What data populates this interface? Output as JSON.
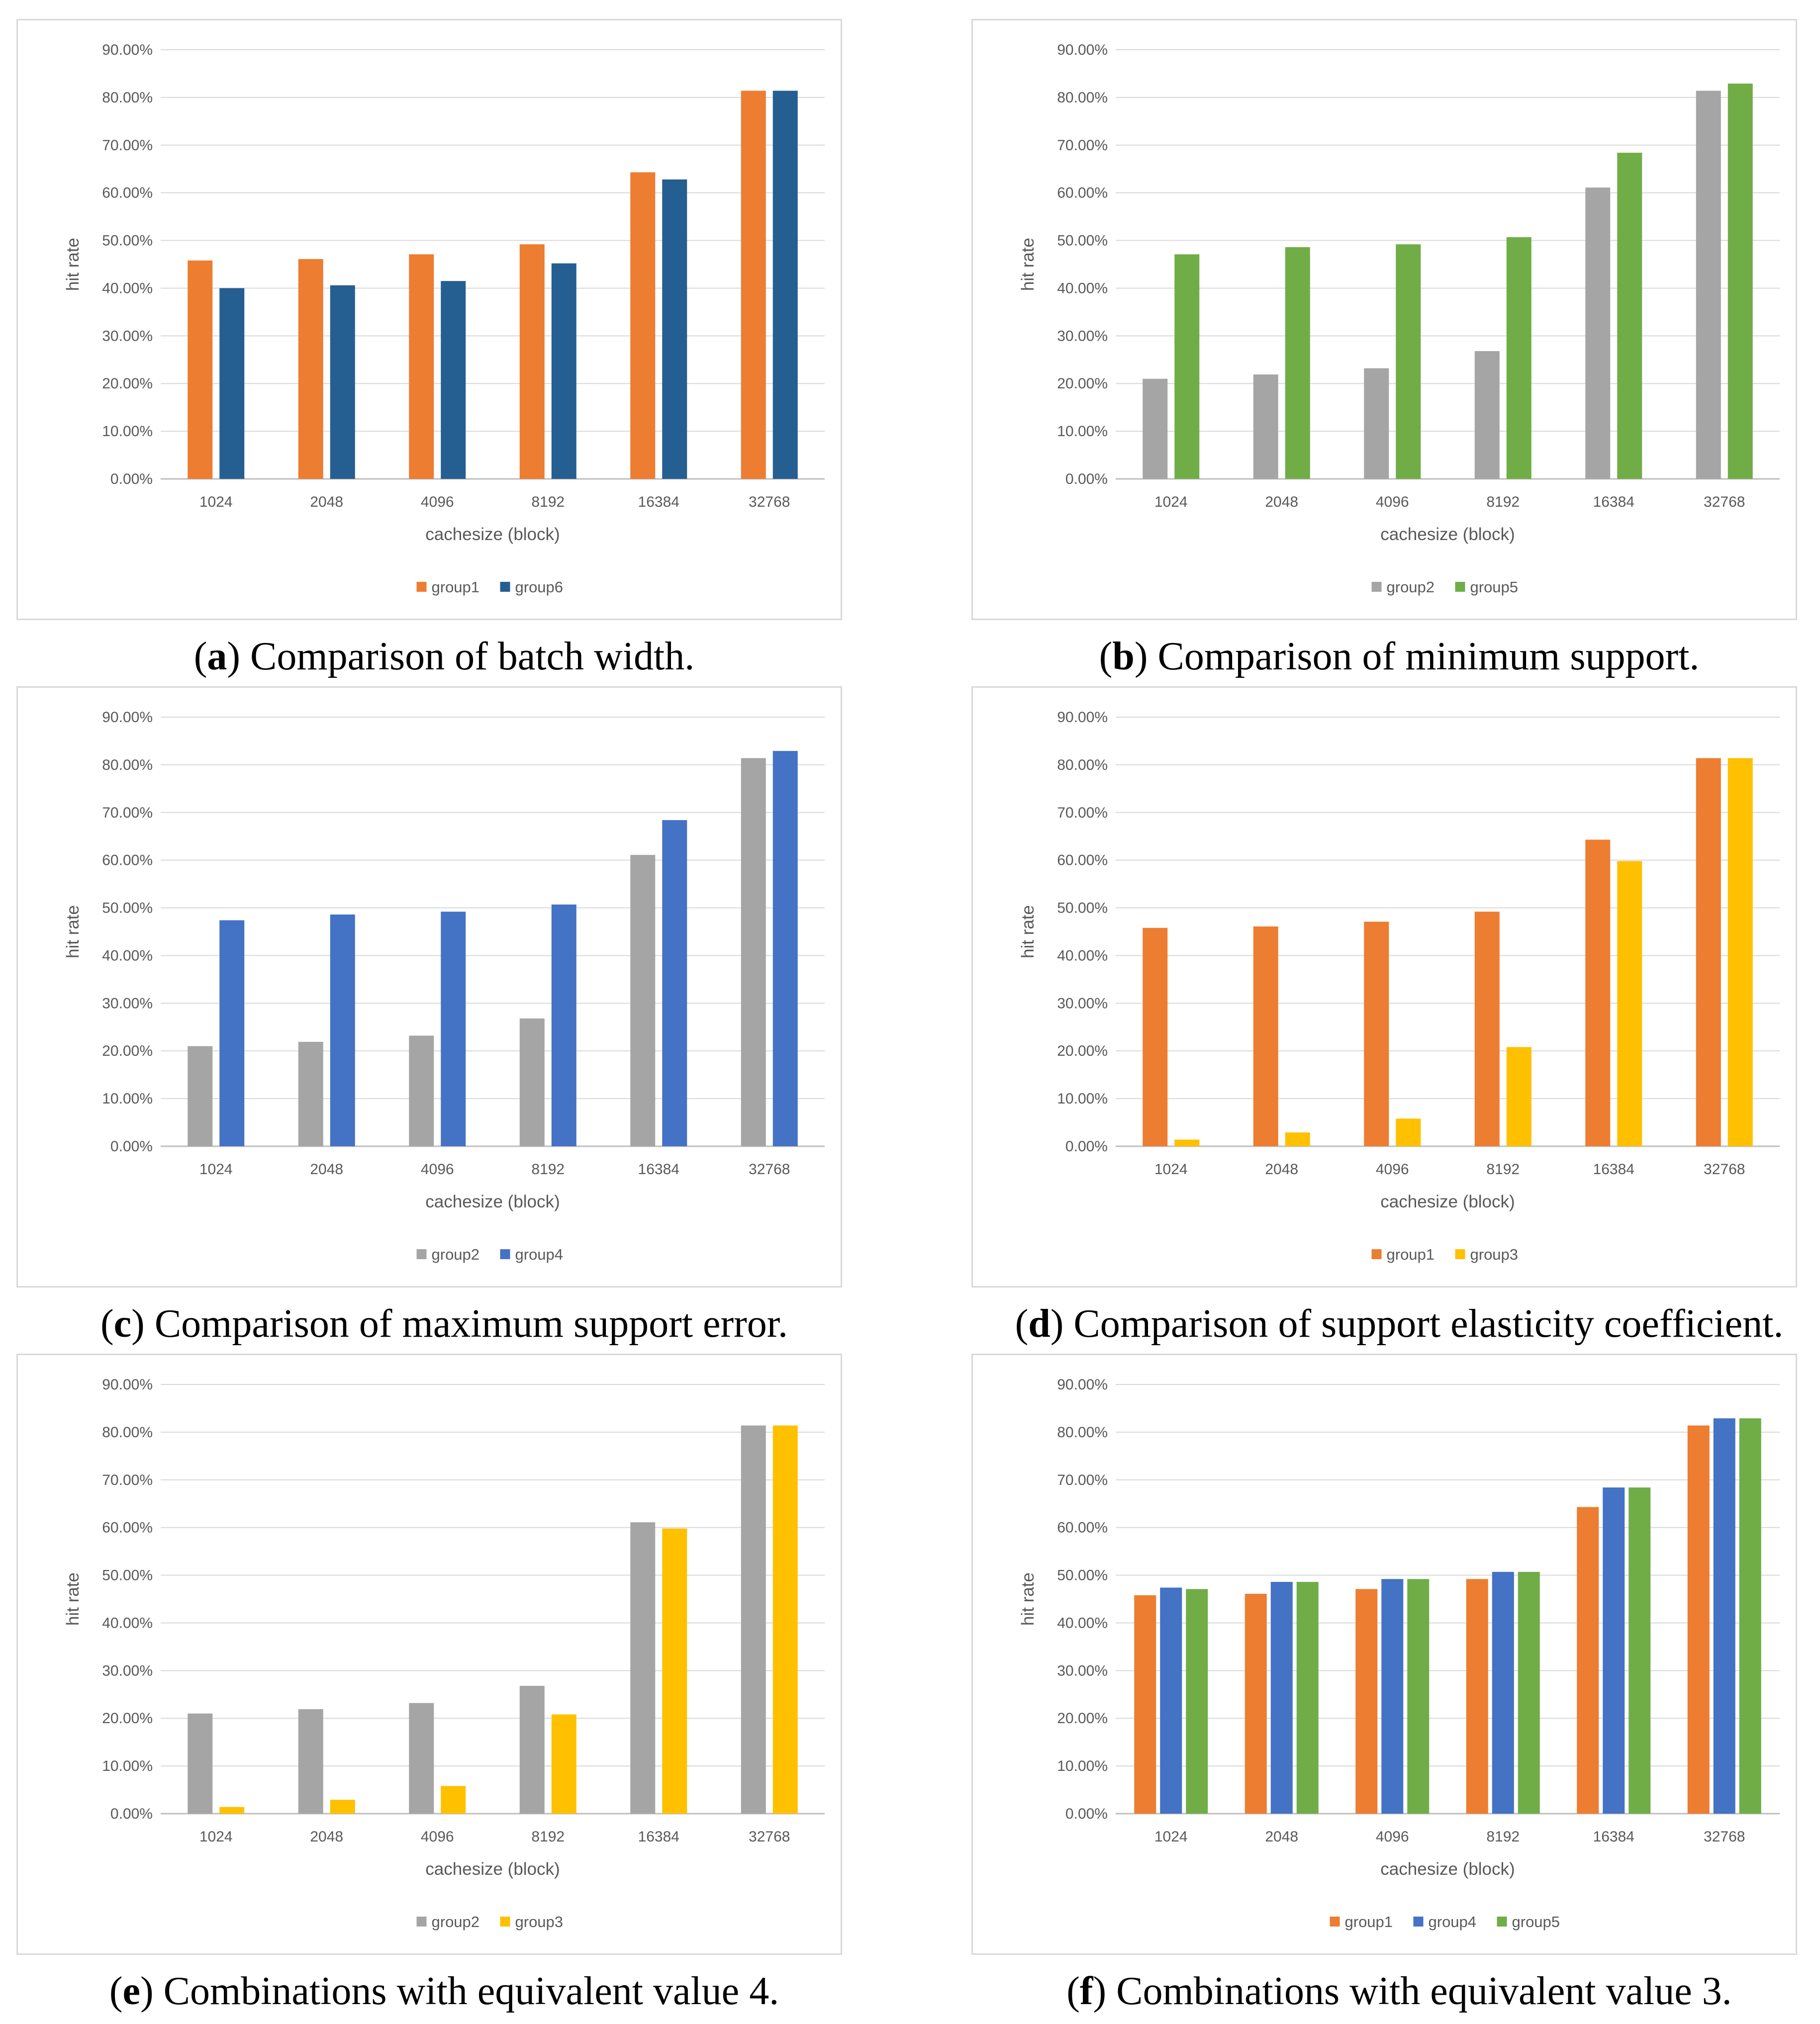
{
  "chart_data": [
    {
      "type": "bar",
      "id": "a",
      "caption_letter": "a",
      "caption_open": "(",
      "caption_close": ")",
      "caption_text": " Comparison of batch width.",
      "categories": [
        "1024",
        "2048",
        "4096",
        "8192",
        "16384",
        "32768"
      ],
      "series": [
        {
          "name": "group1",
          "color": "#ED7D31",
          "values": [
            45.8,
            46.1,
            47.1,
            49.2,
            64.3,
            81.4
          ]
        },
        {
          "name": "group6",
          "color": "#255E91",
          "values": [
            40.0,
            40.6,
            41.5,
            45.2,
            62.8,
            81.4
          ]
        }
      ],
      "xlabel": "cachesize (block)",
      "ylabel": "hit rate",
      "ylim": [
        0,
        90
      ],
      "yticks": [
        "0.00%",
        "10.00%",
        "20.00%",
        "30.00%",
        "40.00%",
        "50.00%",
        "60.00%",
        "70.00%",
        "80.00%",
        "90.00%"
      ]
    },
    {
      "type": "bar",
      "id": "b",
      "caption_letter": "b",
      "caption_open": "(",
      "caption_close": ")",
      "caption_text": " Comparison of minimum support.",
      "categories": [
        "1024",
        "2048",
        "4096",
        "8192",
        "16384",
        "32768"
      ],
      "series": [
        {
          "name": "group2",
          "color": "#A5A5A5",
          "values": [
            21.0,
            21.9,
            23.2,
            26.8,
            61.1,
            81.4
          ]
        },
        {
          "name": "group5",
          "color": "#70AD47",
          "values": [
            47.1,
            48.6,
            49.2,
            50.7,
            68.4,
            82.9
          ]
        }
      ],
      "xlabel": "cachesize (block)",
      "ylabel": "hit rate",
      "ylim": [
        0,
        90
      ],
      "yticks": [
        "0.00%",
        "10.00%",
        "20.00%",
        "30.00%",
        "40.00%",
        "50.00%",
        "60.00%",
        "70.00%",
        "80.00%",
        "90.00%"
      ]
    },
    {
      "type": "bar",
      "id": "c",
      "caption_letter": "c",
      "caption_open": "(",
      "caption_close": ")",
      "caption_text": " Comparison of maximum support error.",
      "categories": [
        "1024",
        "2048",
        "4096",
        "8192",
        "16384",
        "32768"
      ],
      "series": [
        {
          "name": "group2",
          "color": "#A5A5A5",
          "values": [
            21.0,
            21.9,
            23.2,
            26.8,
            61.1,
            81.4
          ]
        },
        {
          "name": "group4",
          "color": "#4472C4",
          "values": [
            47.4,
            48.6,
            49.2,
            50.7,
            68.4,
            82.9
          ]
        }
      ],
      "xlabel": "cachesize (block)",
      "ylabel": "hit rate",
      "ylim": [
        0,
        90
      ],
      "yticks": [
        "0.00%",
        "10.00%",
        "20.00%",
        "30.00%",
        "40.00%",
        "50.00%",
        "60.00%",
        "70.00%",
        "80.00%",
        "90.00%"
      ]
    },
    {
      "type": "bar",
      "id": "d",
      "caption_letter": "d",
      "caption_open": "(",
      "caption_close": ")",
      "caption_text": " Comparison of support elasticity coefficient.",
      "categories": [
        "1024",
        "2048",
        "4096",
        "8192",
        "16384",
        "32768"
      ],
      "series": [
        {
          "name": "group1",
          "color": "#ED7D31",
          "values": [
            45.8,
            46.1,
            47.1,
            49.2,
            64.3,
            81.4
          ]
        },
        {
          "name": "group3",
          "color": "#FFC000",
          "values": [
            1.4,
            2.9,
            5.8,
            20.8,
            59.8,
            81.4
          ]
        }
      ],
      "xlabel": "cachesize (block)",
      "ylabel": "hit rate",
      "ylim": [
        0,
        90
      ],
      "yticks": [
        "0.00%",
        "10.00%",
        "20.00%",
        "30.00%",
        "40.00%",
        "50.00%",
        "60.00%",
        "70.00%",
        "80.00%",
        "90.00%"
      ]
    },
    {
      "type": "bar",
      "id": "e",
      "caption_letter": "e",
      "caption_open": "(",
      "caption_close": ")",
      "caption_text": " Combinations with equivalent value 4.",
      "categories": [
        "1024",
        "2048",
        "4096",
        "8192",
        "16384",
        "32768"
      ],
      "series": [
        {
          "name": "group2",
          "color": "#A5A5A5",
          "values": [
            21.0,
            21.9,
            23.2,
            26.8,
            61.1,
            81.4
          ]
        },
        {
          "name": "group3",
          "color": "#FFC000",
          "values": [
            1.4,
            2.9,
            5.8,
            20.8,
            59.8,
            81.4
          ]
        }
      ],
      "xlabel": "cachesize (block)",
      "ylabel": "hit rate",
      "ylim": [
        0,
        90
      ],
      "yticks": [
        "0.00%",
        "10.00%",
        "20.00%",
        "30.00%",
        "40.00%",
        "50.00%",
        "60.00%",
        "70.00%",
        "80.00%",
        "90.00%"
      ]
    },
    {
      "type": "bar",
      "id": "f",
      "caption_letter": "f",
      "caption_open": "(",
      "caption_close": ")",
      "caption_text": " Combinations with equivalent value 3.",
      "categories": [
        "1024",
        "2048",
        "4096",
        "8192",
        "16384",
        "32768"
      ],
      "series": [
        {
          "name": "group1",
          "color": "#ED7D31",
          "values": [
            45.8,
            46.1,
            47.1,
            49.2,
            64.3,
            81.4
          ]
        },
        {
          "name": "group4",
          "color": "#4472C4",
          "values": [
            47.4,
            48.6,
            49.2,
            50.7,
            68.4,
            82.9
          ]
        },
        {
          "name": "group5",
          "color": "#70AD47",
          "values": [
            47.1,
            48.6,
            49.2,
            50.7,
            68.4,
            82.9
          ]
        }
      ],
      "xlabel": "cachesize (block)",
      "ylabel": "hit rate",
      "ylim": [
        0,
        90
      ],
      "yticks": [
        "0.00%",
        "10.00%",
        "20.00%",
        "30.00%",
        "40.00%",
        "50.00%",
        "60.00%",
        "70.00%",
        "80.00%",
        "90.00%"
      ]
    }
  ]
}
